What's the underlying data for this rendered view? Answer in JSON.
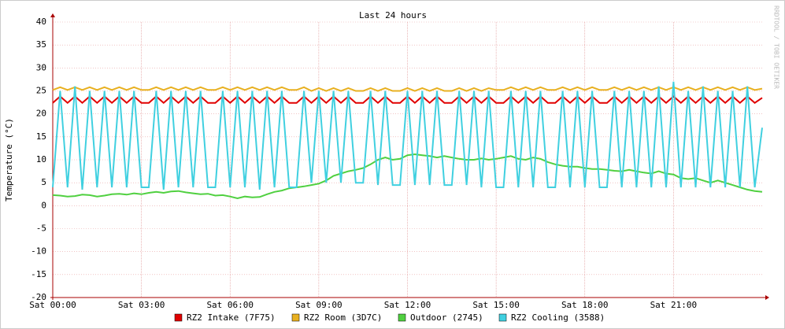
{
  "chart_data": {
    "type": "line",
    "title": "Last 24 hours",
    "y_label": "Temperature (°C)",
    "side_text": "RRDTOOL / TOBI OETIKER",
    "x": [
      0,
      0.25,
      0.5,
      0.75,
      1,
      1.25,
      1.5,
      1.75,
      2,
      2.25,
      2.5,
      2.75,
      3,
      3.25,
      3.5,
      3.75,
      4,
      4.25,
      4.5,
      4.75,
      5,
      5.25,
      5.5,
      5.75,
      6,
      6.25,
      6.5,
      6.75,
      7,
      7.25,
      7.5,
      7.75,
      8,
      8.25,
      8.5,
      8.75,
      9,
      9.25,
      9.5,
      9.75,
      10,
      10.25,
      10.5,
      10.75,
      11,
      11.25,
      11.5,
      11.75,
      12,
      12.25,
      12.5,
      12.75,
      13,
      13.25,
      13.5,
      13.75,
      14,
      14.25,
      14.5,
      14.75,
      15,
      15.25,
      15.5,
      15.75,
      16,
      16.25,
      16.5,
      16.75,
      17,
      17.25,
      17.5,
      17.75,
      18,
      18.25,
      18.5,
      18.75,
      19,
      19.25,
      19.5,
      19.75,
      20,
      20.25,
      20.5,
      20.75,
      21,
      21.25,
      21.5,
      21.75,
      22,
      22.25,
      22.5,
      22.75,
      23,
      23.25,
      23.5,
      23.75,
      24
    ],
    "xlim": [
      0,
      24
    ],
    "xticks": [
      {
        "value": 0,
        "label": "Sat 00:00"
      },
      {
        "value": 3,
        "label": "Sat 03:00"
      },
      {
        "value": 6,
        "label": "Sat 06:00"
      },
      {
        "value": 9,
        "label": "Sat 09:00"
      },
      {
        "value": 12,
        "label": "Sat 12:00"
      },
      {
        "value": 15,
        "label": "Sat 15:00"
      },
      {
        "value": 18,
        "label": "Sat 18:00"
      },
      {
        "value": 21,
        "label": "Sat 21:00"
      }
    ],
    "ylim": [
      -20,
      40
    ],
    "yticks": [
      -20,
      -15,
      -10,
      -5,
      0,
      5,
      10,
      15,
      20,
      25,
      30,
      35,
      40
    ],
    "grid": true,
    "series": [
      {
        "name": "RZ2 Intake (7F75)",
        "color": "#e00000",
        "values": [
          22.4,
          23.8,
          22.4,
          23.8,
          22.4,
          23.8,
          22.4,
          23.8,
          22.4,
          23.8,
          22.4,
          23.8,
          22.4,
          22.4,
          23.8,
          22.4,
          23.8,
          22.4,
          23.8,
          22.4,
          23.8,
          22.4,
          22.4,
          23.8,
          22.4,
          23.8,
          22.4,
          23.8,
          22.4,
          23.8,
          22.4,
          23.8,
          22.4,
          22.4,
          23.8,
          22.4,
          23.8,
          22.4,
          23.8,
          22.4,
          23.8,
          22.4,
          22.4,
          23.8,
          22.4,
          23.8,
          22.4,
          22.4,
          23.8,
          22.4,
          23.8,
          22.4,
          23.8,
          22.4,
          22.4,
          23.8,
          22.4,
          23.8,
          22.4,
          23.8,
          22.4,
          22.4,
          23.8,
          22.4,
          23.8,
          22.4,
          23.8,
          22.4,
          22.4,
          23.8,
          22.4,
          23.8,
          22.4,
          23.8,
          22.4,
          22.4,
          23.8,
          22.4,
          23.8,
          22.4,
          23.8,
          22.4,
          23.8,
          22.4,
          23.8,
          22.4,
          23.8,
          22.4,
          23.8,
          22.4,
          23.8,
          22.4,
          23.8,
          22.4,
          23.8,
          22.4,
          23.5
        ]
      },
      {
        "name": "RZ2 Room (3D7C)",
        "color": "#e8b020",
        "values": [
          25.2,
          25.8,
          25.2,
          25.8,
          25.2,
          25.8,
          25.2,
          25.8,
          25.2,
          25.8,
          25.2,
          25.8,
          25.2,
          25.2,
          25.8,
          25.2,
          25.8,
          25.2,
          25.8,
          25.2,
          25.8,
          25.2,
          25.2,
          25.8,
          25.2,
          25.8,
          25.2,
          25.8,
          25.2,
          25.8,
          25.2,
          25.8,
          25.2,
          25.2,
          25.8,
          25.0,
          25.6,
          25.0,
          25.6,
          25.0,
          25.6,
          25.0,
          25.0,
          25.6,
          25.0,
          25.6,
          25.0,
          25.0,
          25.6,
          25.0,
          25.6,
          25.0,
          25.6,
          25.0,
          25.0,
          25.6,
          25.0,
          25.6,
          25.0,
          25.6,
          25.2,
          25.2,
          25.8,
          25.2,
          25.8,
          25.2,
          25.8,
          25.2,
          25.2,
          25.8,
          25.2,
          25.8,
          25.2,
          25.8,
          25.2,
          25.2,
          25.8,
          25.2,
          25.8,
          25.2,
          25.8,
          25.2,
          25.8,
          25.2,
          25.8,
          25.2,
          25.8,
          25.2,
          25.8,
          25.2,
          25.8,
          25.2,
          25.8,
          25.2,
          25.8,
          25.2,
          25.5
        ]
      },
      {
        "name": "Outdoor (2745)",
        "color": "#50d040",
        "values": [
          2.3,
          2.2,
          2.0,
          2.1,
          2.4,
          2.3,
          2.0,
          2.2,
          2.5,
          2.6,
          2.4,
          2.7,
          2.5,
          2.8,
          3.0,
          2.8,
          3.1,
          3.2,
          2.9,
          2.7,
          2.5,
          2.6,
          2.2,
          2.3,
          2.0,
          1.6,
          2.0,
          1.8,
          1.9,
          2.5,
          3.0,
          3.3,
          3.8,
          4.0,
          4.2,
          4.5,
          4.8,
          5.5,
          6.5,
          7.0,
          7.5,
          7.8,
          8.2,
          9.0,
          10.0,
          10.5,
          10.0,
          10.2,
          11.0,
          11.2,
          11.0,
          10.8,
          10.5,
          10.8,
          10.5,
          10.2,
          10.0,
          10.0,
          10.3,
          10.0,
          10.2,
          10.5,
          10.8,
          10.2,
          10.0,
          10.5,
          10.2,
          9.5,
          9.0,
          8.7,
          8.5,
          8.5,
          8.2,
          8.0,
          8.0,
          7.8,
          7.6,
          7.5,
          7.8,
          7.5,
          7.2,
          7.0,
          7.5,
          7.0,
          6.8,
          6.0,
          5.8,
          6.0,
          5.5,
          5.0,
          5.5,
          5.0,
          4.5,
          4.0,
          3.5,
          3.2,
          3.0
        ]
      },
      {
        "name": "RZ2 Cooling (3588)",
        "color": "#40d0e0",
        "values": [
          4,
          25,
          4,
          26,
          3.5,
          25,
          4,
          25,
          4,
          25,
          4,
          25,
          4,
          4,
          25,
          3.5,
          25,
          4,
          25,
          4,
          25,
          4,
          4,
          25,
          4,
          25,
          4,
          25,
          3.5,
          25,
          4,
          25,
          4,
          4,
          25,
          5,
          25,
          5,
          25,
          5,
          25,
          5,
          5,
          25,
          4.5,
          25,
          4.5,
          4.5,
          25,
          4.5,
          25,
          4.5,
          25,
          4.5,
          4.5,
          25,
          4.5,
          25,
          4,
          25,
          4,
          4,
          25,
          4,
          25,
          4,
          25,
          4,
          4,
          25,
          4,
          25,
          4,
          25,
          4,
          4,
          25,
          4,
          25,
          4,
          25,
          4,
          26,
          4,
          27,
          4,
          25,
          4,
          26,
          4,
          25,
          4,
          25,
          4,
          26,
          4,
          17
        ]
      }
    ]
  }
}
